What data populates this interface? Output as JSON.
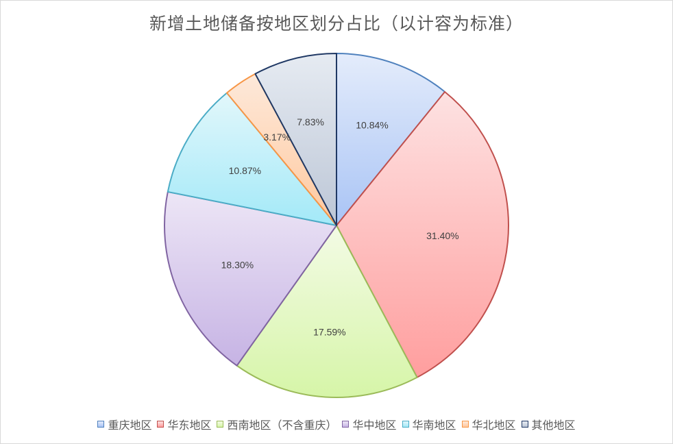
{
  "chart_data": {
    "type": "pie",
    "title": "新增土地储备按地区划分占比（以计容为标准）",
    "categories": [
      "重庆地区",
      "华东地区",
      "西南地区（不含重庆）",
      "华中地区",
      "华南地区",
      "华北地区",
      "其他地区"
    ],
    "values": [
      10.84,
      31.4,
      17.59,
      18.3,
      10.87,
      3.17,
      7.83
    ],
    "labels": [
      "10.84%",
      "31.40%",
      "17.59%",
      "18.30%",
      "10.87%",
      "3.17%",
      "7.83%"
    ],
    "colors": [
      {
        "light": "#e4ecfb",
        "dark": "#a9c4f5",
        "edge": "#4f81bd"
      },
      {
        "light": "#fde2e2",
        "dark": "#ff9e9e",
        "edge": "#c0504d"
      },
      {
        "light": "#f3fbe5",
        "dark": "#d6f5a8",
        "edge": "#9bbb59"
      },
      {
        "light": "#ede6f6",
        "dark": "#c6b3e4",
        "edge": "#8064a2"
      },
      {
        "light": "#e2f7fb",
        "dark": "#a3e9f8",
        "edge": "#4bacc6"
      },
      {
        "light": "#fde9da",
        "dark": "#ffc89e",
        "edge": "#f79646"
      },
      {
        "light": "#e6ebf2",
        "dark": "#bcc6d6",
        "edge": "#1f3864"
      }
    ],
    "legend_position": "bottom"
  }
}
